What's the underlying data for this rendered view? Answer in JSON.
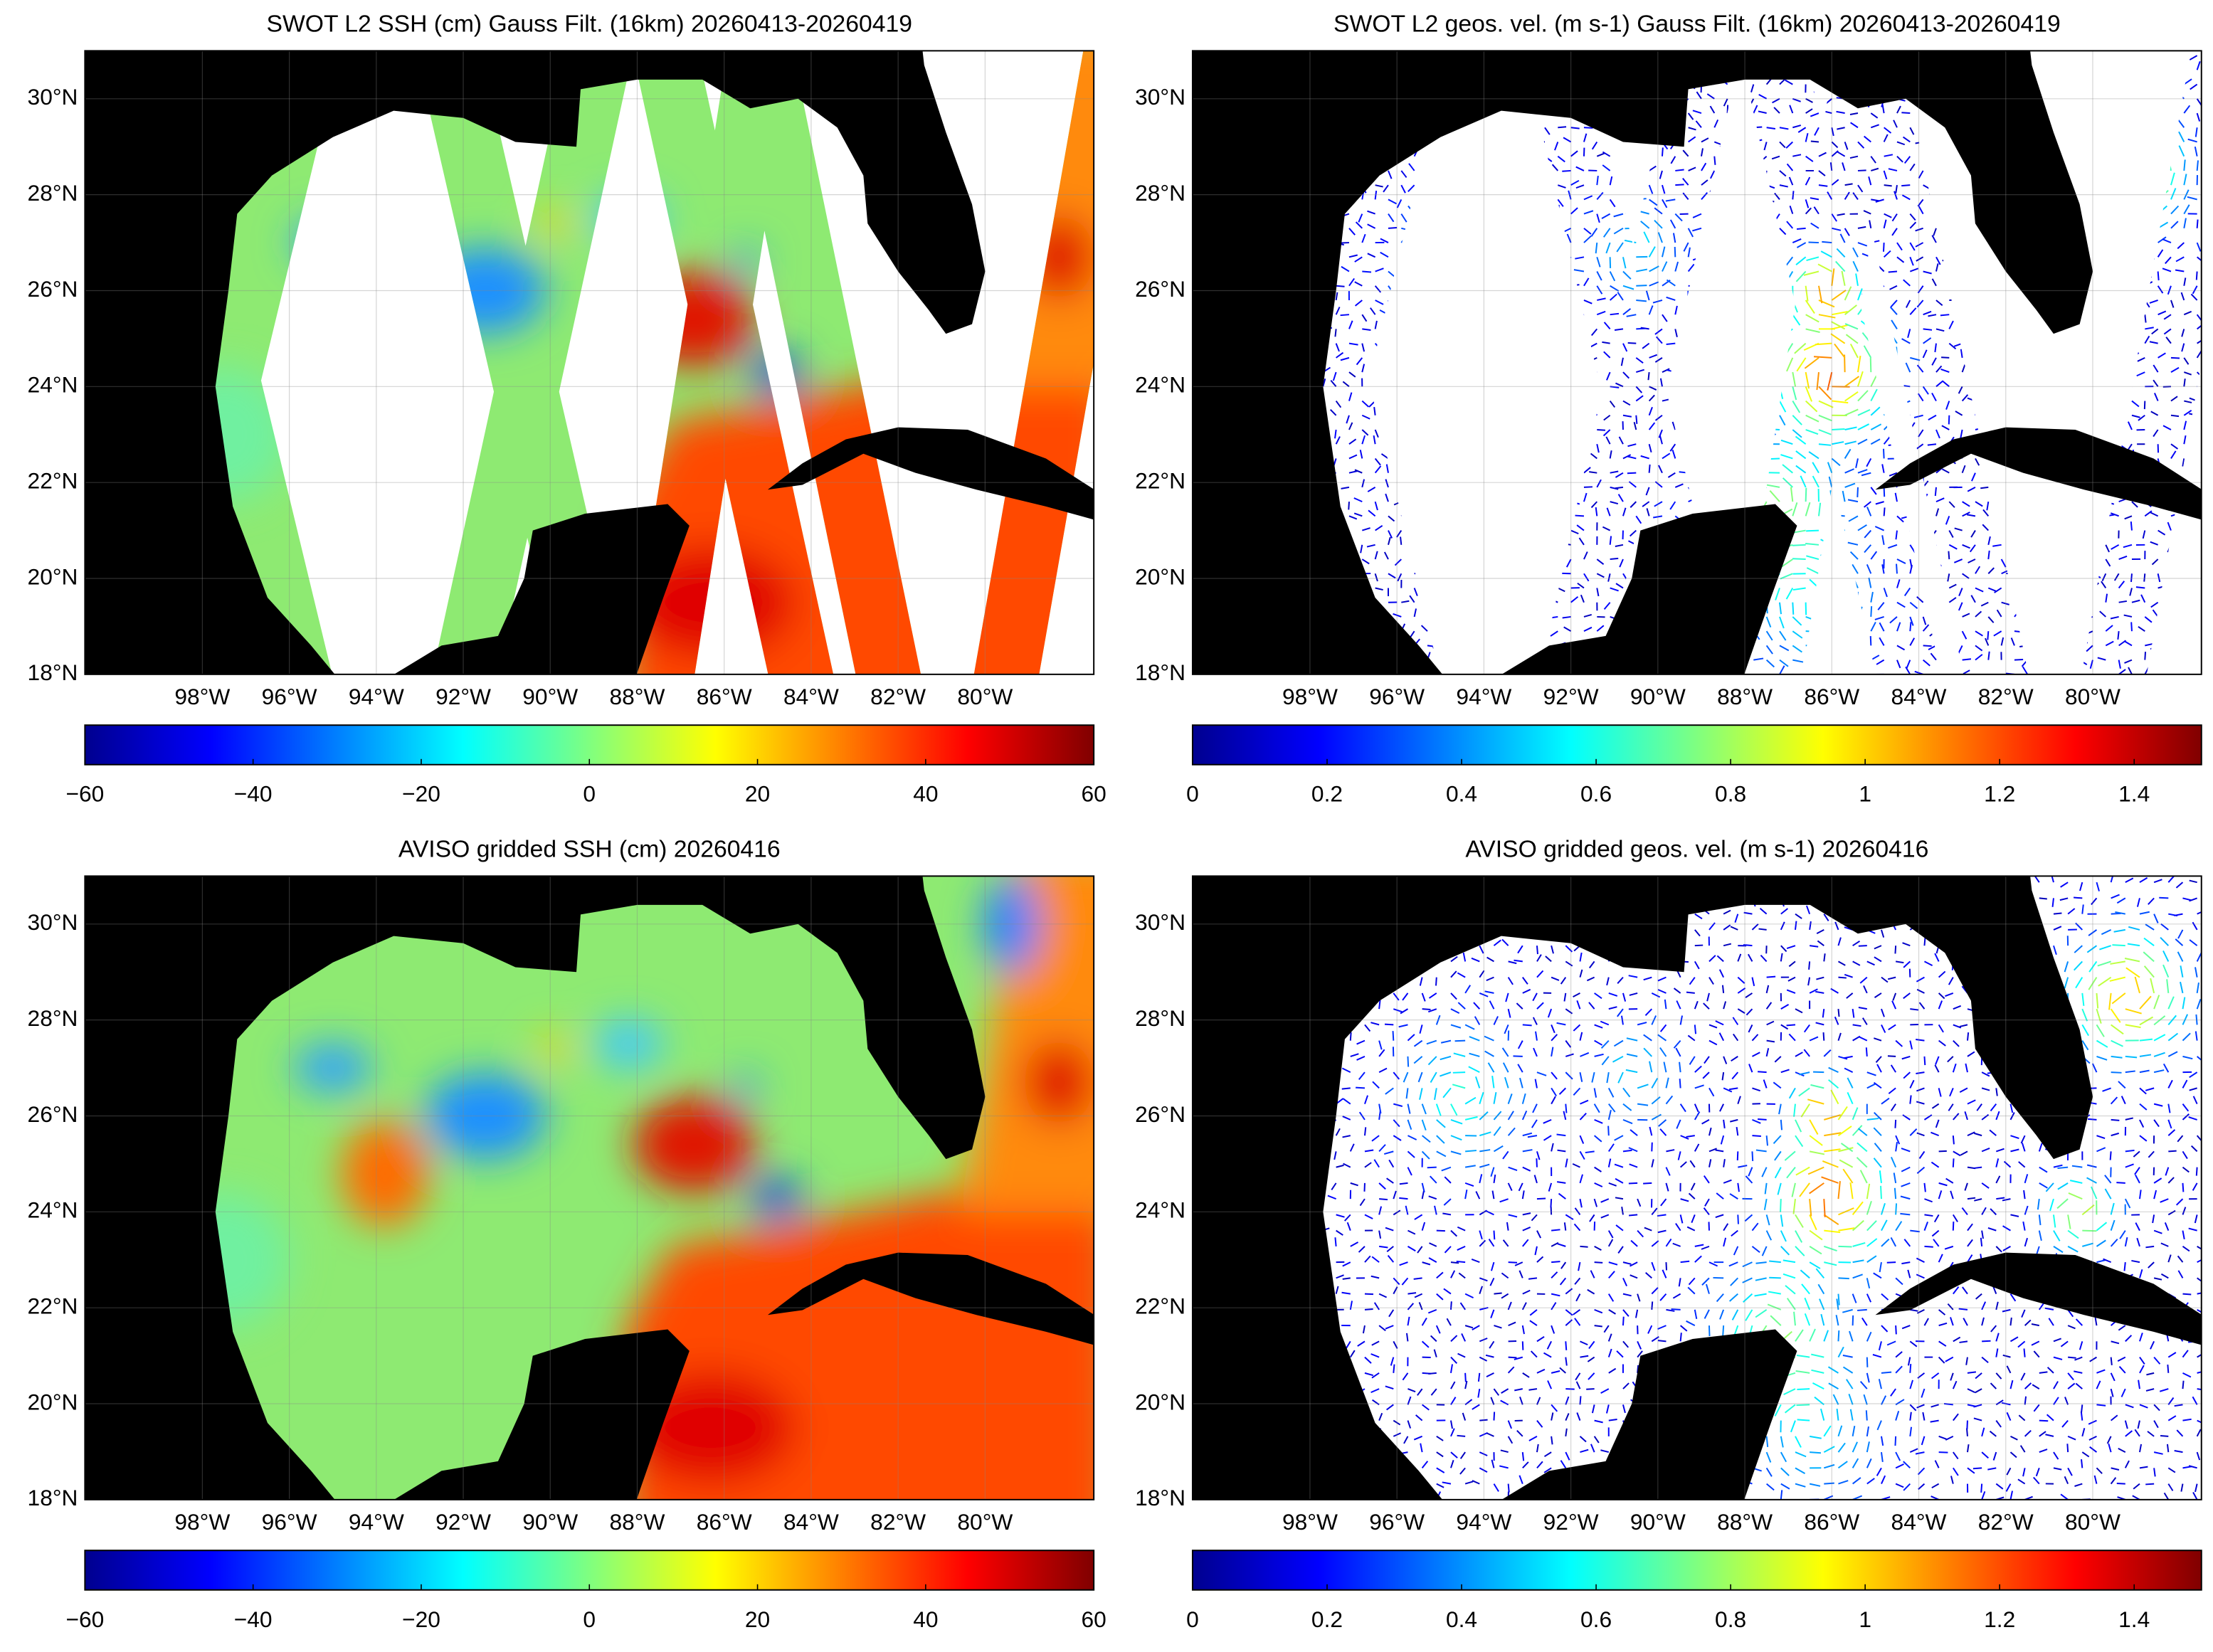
{
  "chart_data": [
    {
      "type": "heatmap",
      "swath": true,
      "title": "SWOT L2 SSH (cm) Gauss Filt. (16km) 20260413-20260419",
      "xlim": [
        -100.7,
        -77.5
      ],
      "ylim": [
        18,
        31
      ],
      "xticks": [
        {
          "value": -98,
          "label": "98°W"
        },
        {
          "value": -96,
          "label": "96°W"
        },
        {
          "value": -94,
          "label": "94°W"
        },
        {
          "value": -92,
          "label": "92°W"
        },
        {
          "value": -90,
          "label": "90°W"
        },
        {
          "value": -88,
          "label": "88°W"
        },
        {
          "value": -86,
          "label": "86°W"
        },
        {
          "value": -84,
          "label": "84°W"
        },
        {
          "value": -82,
          "label": "82°W"
        },
        {
          "value": -80,
          "label": "80°W"
        }
      ],
      "yticks": [
        {
          "value": 18,
          "label": "18°N"
        },
        {
          "value": 20,
          "label": "20°N"
        },
        {
          "value": 22,
          "label": "22°N"
        },
        {
          "value": 24,
          "label": "24°N"
        },
        {
          "value": 26,
          "label": "26°N"
        },
        {
          "value": 28,
          "label": "28°N"
        },
        {
          "value": 30,
          "label": "30°N"
        }
      ],
      "grid": true,
      "colorbar": {
        "lim": [
          -60,
          60
        ],
        "ticks": [
          {
            "value": -60,
            "label": "−60"
          },
          {
            "value": -40,
            "label": "−40"
          },
          {
            "value": -20,
            "label": "−20"
          },
          0,
          20,
          40,
          60
        ]
      }
    },
    {
      "type": "quiver",
      "swath": true,
      "title": "SWOT L2 geos. vel. (m s-1) Gauss Filt. (16km) 20260413-20260419",
      "xlim": [
        -100.7,
        -77.5
      ],
      "ylim": [
        18,
        31
      ],
      "xticks": [
        {
          "value": -98,
          "label": "98°W"
        },
        {
          "value": -96,
          "label": "96°W"
        },
        {
          "value": -94,
          "label": "94°W"
        },
        {
          "value": -92,
          "label": "92°W"
        },
        {
          "value": -90,
          "label": "90°W"
        },
        {
          "value": -88,
          "label": "88°W"
        },
        {
          "value": -86,
          "label": "86°W"
        },
        {
          "value": -84,
          "label": "84°W"
        },
        {
          "value": -82,
          "label": "82°W"
        },
        {
          "value": -80,
          "label": "80°W"
        }
      ],
      "yticks": [
        {
          "value": 18,
          "label": "18°N"
        },
        {
          "value": 20,
          "label": "20°N"
        },
        {
          "value": 22,
          "label": "22°N"
        },
        {
          "value": 24,
          "label": "24°N"
        },
        {
          "value": 26,
          "label": "26°N"
        },
        {
          "value": 28,
          "label": "28°N"
        },
        {
          "value": 30,
          "label": "30°N"
        }
      ],
      "grid": true,
      "colorbar": {
        "lim": [
          0,
          1.5
        ],
        "ticks": [
          0,
          0.2,
          0.4,
          0.6,
          0.8,
          1,
          1.2,
          1.4
        ]
      }
    },
    {
      "type": "heatmap",
      "swath": false,
      "title": "AVISO gridded SSH (cm) 20260416",
      "xlim": [
        -100.7,
        -77.5
      ],
      "ylim": [
        18,
        31
      ],
      "xticks": [
        {
          "value": -98,
          "label": "98°W"
        },
        {
          "value": -96,
          "label": "96°W"
        },
        {
          "value": -94,
          "label": "94°W"
        },
        {
          "value": -92,
          "label": "92°W"
        },
        {
          "value": -90,
          "label": "90°W"
        },
        {
          "value": -88,
          "label": "88°W"
        },
        {
          "value": -86,
          "label": "86°W"
        },
        {
          "value": -84,
          "label": "84°W"
        },
        {
          "value": -82,
          "label": "82°W"
        },
        {
          "value": -80,
          "label": "80°W"
        }
      ],
      "yticks": [
        {
          "value": 18,
          "label": "18°N"
        },
        {
          "value": 20,
          "label": "20°N"
        },
        {
          "value": 22,
          "label": "22°N"
        },
        {
          "value": 24,
          "label": "24°N"
        },
        {
          "value": 26,
          "label": "26°N"
        },
        {
          "value": 28,
          "label": "28°N"
        },
        {
          "value": 30,
          "label": "30°N"
        }
      ],
      "grid": true,
      "colorbar": {
        "lim": [
          -60,
          60
        ],
        "ticks": [
          {
            "value": -60,
            "label": "−60"
          },
          {
            "value": -40,
            "label": "−40"
          },
          {
            "value": -20,
            "label": "−20"
          },
          0,
          20,
          40,
          60
        ]
      }
    },
    {
      "type": "quiver",
      "swath": false,
      "title": "AVISO gridded geos. vel. (m s-1)  20260416",
      "xlim": [
        -100.7,
        -77.5
      ],
      "ylim": [
        18,
        31
      ],
      "xticks": [
        {
          "value": -98,
          "label": "98°W"
        },
        {
          "value": -96,
          "label": "96°W"
        },
        {
          "value": -94,
          "label": "94°W"
        },
        {
          "value": -92,
          "label": "92°W"
        },
        {
          "value": -90,
          "label": "90°W"
        },
        {
          "value": -88,
          "label": "88°W"
        },
        {
          "value": -86,
          "label": "86°W"
        },
        {
          "value": -84,
          "label": "84°W"
        },
        {
          "value": -82,
          "label": "82°W"
        },
        {
          "value": -80,
          "label": "80°W"
        }
      ],
      "yticks": [
        {
          "value": 18,
          "label": "18°N"
        },
        {
          "value": 20,
          "label": "20°N"
        },
        {
          "value": 22,
          "label": "22°N"
        },
        {
          "value": 24,
          "label": "24°N"
        },
        {
          "value": 26,
          "label": "26°N"
        },
        {
          "value": 28,
          "label": "28°N"
        },
        {
          "value": 30,
          "label": "30°N"
        }
      ],
      "grid": true,
      "colorbar": {
        "lim": [
          0,
          1.5
        ],
        "ticks": [
          0,
          0.2,
          0.4,
          0.6,
          0.8,
          1,
          1.2,
          1.4
        ]
      }
    }
  ]
}
